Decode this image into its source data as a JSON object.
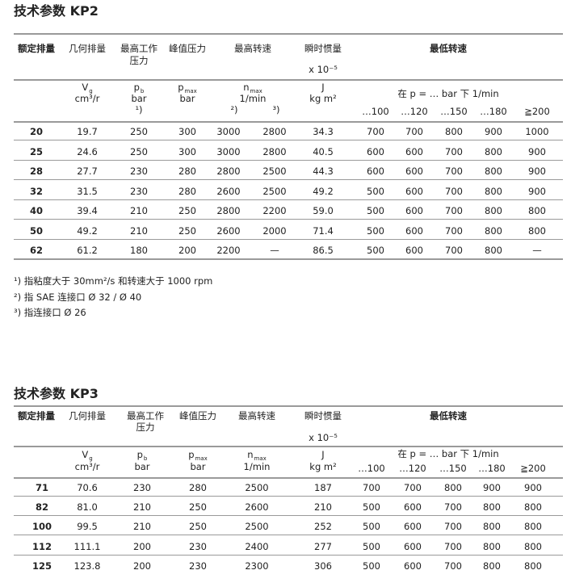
{
  "kp2": {
    "title": "技术参数  KP2",
    "headers": {
      "rated": "额定排量",
      "geo": "几何排量",
      "maxwork": "最高工作",
      "maxwork2": "压力",
      "peak": "峰值压力",
      "maxspeed": "最高转速",
      "inertia": "瞬时惯量",
      "inertia_unit": "x 10⁻⁵",
      "minspeed": "最低转速"
    },
    "sub": {
      "vg": "V",
      "vg_sub": "g",
      "vg_unit": "cm³/r",
      "pb": "p",
      "pb_sub": "b",
      "pb_unit": "bar",
      "pb_note": "¹)",
      "pmax": "p",
      "pmax_sub": "max",
      "pmax_unit": "bar",
      "nmax": "n",
      "nmax_sub": "max",
      "nmax_unit": "1/min",
      "note2": "²)",
      "note3": "³)",
      "j": "J",
      "j_unit": "kg m²",
      "p_label": "在 p = … bar 下  1/min",
      "p_cols": [
        "…100",
        "…120",
        "…150",
        "…180",
        "≧200"
      ]
    },
    "rows": [
      [
        "20",
        "19.7",
        "250",
        "300",
        "3000",
        "2800",
        "34.3",
        "700",
        "700",
        "800",
        "900",
        "1000"
      ],
      [
        "25",
        "24.6",
        "250",
        "300",
        "3000",
        "2800",
        "40.5",
        "600",
        "600",
        "700",
        "800",
        "900"
      ],
      [
        "28",
        "27.7",
        "230",
        "280",
        "2800",
        "2500",
        "44.3",
        "600",
        "600",
        "700",
        "800",
        "900"
      ],
      [
        "32",
        "31.5",
        "230",
        "280",
        "2600",
        "2500",
        "49.2",
        "500",
        "600",
        "700",
        "800",
        "900"
      ],
      [
        "40",
        "39.4",
        "210",
        "250",
        "2800",
        "2200",
        "59.0",
        "500",
        "600",
        "700",
        "800",
        "800"
      ],
      [
        "50",
        "49.2",
        "210",
        "250",
        "2600",
        "2000",
        "71.4",
        "500",
        "600",
        "700",
        "800",
        "800"
      ],
      [
        "62",
        "61.2",
        "180",
        "200",
        "2200",
        "—",
        "86.5",
        "500",
        "600",
        "700",
        "800",
        "—"
      ]
    ],
    "footnotes": [
      "¹)  指粘度大于 30mm²/s 和转速大于 1000 rpm",
      "²)  指 SAE 连接口 Ø 32 / Ø 40",
      "³)  指连接口 Ø 26"
    ]
  },
  "kp3": {
    "title": "技术参数  KP3",
    "headers": {
      "rated": "额定排量",
      "geo": "几何排量",
      "maxwork": "最高工作",
      "maxwork2": "压力",
      "peak": "峰值压力",
      "maxspeed": "最高转速",
      "inertia": "瞬时惯量",
      "inertia_unit": "x 10⁻⁵",
      "minspeed": "最低转速"
    },
    "sub": {
      "vg": "V",
      "vg_sub": "g",
      "vg_unit": "cm³/r",
      "pb": "p",
      "pb_sub": "b",
      "pb_unit": "bar",
      "pmax": "p",
      "pmax_sub": "max",
      "pmax_unit": "bar",
      "nmax": "n",
      "nmax_sub": "max",
      "nmax_unit": "1/min",
      "j": "J",
      "j_unit": "kg m²",
      "p_label": "在 p = … bar 下  1/min",
      "p_cols": [
        "…100",
        "…120",
        "…150",
        "…180",
        "≧200"
      ]
    },
    "rows": [
      [
        "71",
        "70.6",
        "230",
        "280",
        "2500",
        "187",
        "700",
        "700",
        "800",
        "900",
        "900"
      ],
      [
        "82",
        "81.0",
        "210",
        "250",
        "2600",
        "210",
        "500",
        "600",
        "700",
        "800",
        "800"
      ],
      [
        "100",
        "99.5",
        "210",
        "250",
        "2500",
        "252",
        "500",
        "600",
        "700",
        "800",
        "800"
      ],
      [
        "112",
        "111.1",
        "200",
        "230",
        "2400",
        "277",
        "500",
        "600",
        "700",
        "800",
        "800"
      ],
      [
        "125",
        "123.8",
        "200",
        "230",
        "2300",
        "306",
        "500",
        "600",
        "700",
        "800",
        "800"
      ]
    ]
  }
}
